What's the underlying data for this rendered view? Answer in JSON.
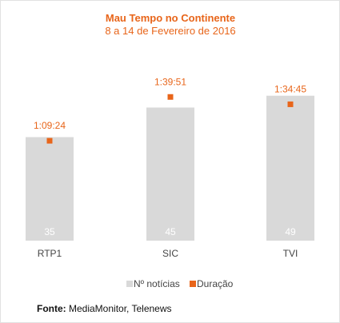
{
  "chart_data": {
    "type": "bar",
    "title": "Mau Tempo no Continente",
    "subtitle": "8 a 14 de Fevereiro de 2016",
    "categories": [
      "RTP1",
      "SIC",
      "TVI"
    ],
    "series": [
      {
        "name": "Nº notícias",
        "kind": "bar",
        "values": [
          35,
          45,
          49
        ],
        "labels": [
          "35",
          "45",
          "49"
        ]
      },
      {
        "name": "Duração",
        "kind": "point",
        "values": [
          4164,
          5991,
          5685
        ],
        "labels": [
          "1:09:24",
          "1:39:51",
          "1:34:45"
        ]
      }
    ],
    "legend_position": "bottom",
    "grid": false,
    "colors": {
      "bars": "#d9d9d9",
      "points": "#e8651a",
      "title": "#e8651a",
      "bar_labels": "#ffffff",
      "point_labels": "#e8651a"
    }
  },
  "source": {
    "label": "Fonte:",
    "text": "MediaMonitor, Telenews"
  }
}
